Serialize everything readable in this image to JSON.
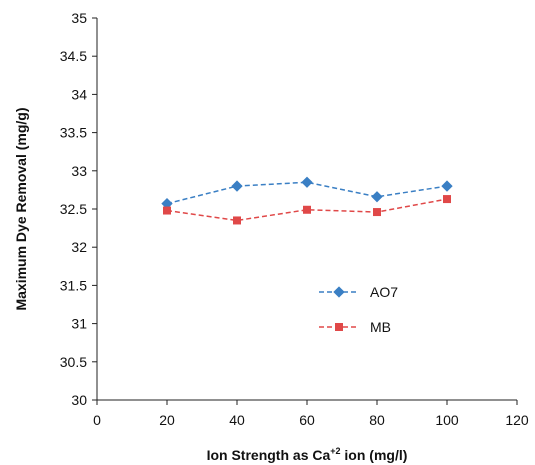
{
  "chart_data": {
    "type": "line",
    "xlabel": "Ion Strength as Ca",
    "xlabel_superscript": "+2",
    "xlabel_suffix": " ion (mg/l)",
    "ylabel": "Maximum Dye Removal (mg/g)",
    "xlim": [
      0,
      120
    ],
    "ylim": [
      30,
      35
    ],
    "x_ticks": [
      "0",
      "20",
      "40",
      "60",
      "80",
      "100",
      "120"
    ],
    "y_ticks": [
      "30",
      "30.5",
      "31",
      "31.5",
      "32",
      "32.5",
      "33",
      "33.5",
      "34",
      "34.5",
      "35"
    ],
    "grid": false,
    "legend_position": "center-right",
    "x": [
      20,
      40,
      60,
      80,
      100
    ],
    "series": [
      {
        "name": "AO7",
        "values": [
          32.57,
          32.8,
          32.85,
          32.66,
          32.8
        ],
        "color": "#3a7fc4",
        "marker": "diamond",
        "line_style": "dashed"
      },
      {
        "name": "MB",
        "values": [
          32.48,
          32.35,
          32.49,
          32.46,
          32.63
        ],
        "color": "#e04848",
        "marker": "square",
        "line_style": "dashed"
      }
    ]
  }
}
